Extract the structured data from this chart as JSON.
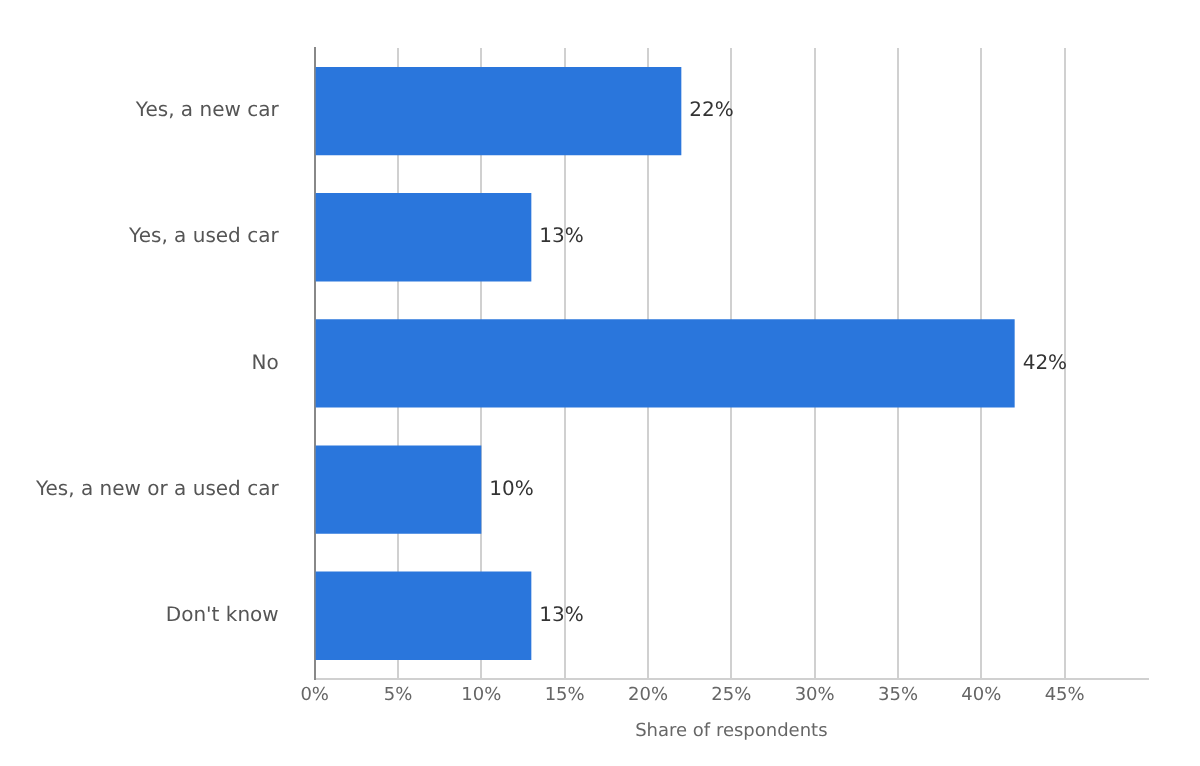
{
  "chart_data": {
    "type": "bar",
    "orientation": "horizontal",
    "categories": [
      "Yes, a new car",
      "Yes, a used car",
      "No",
      "Yes, a new or a used car",
      "Don't know"
    ],
    "values": [
      22,
      13,
      42,
      10,
      13
    ],
    "color": "#2a76dc",
    "value_labels": [
      "22%",
      "13%",
      "42%",
      "10%",
      "13%"
    ],
    "xlabel": "Share of respondents",
    "xlim": [
      0,
      50
    ],
    "xticks": [
      {
        "value": 0,
        "label": "0%"
      },
      {
        "value": 5,
        "label": "5%"
      },
      {
        "value": 10,
        "label": "10%"
      },
      {
        "value": 15,
        "label": "15%"
      },
      {
        "value": 20,
        "label": "20%"
      },
      {
        "value": 25,
        "label": "25%"
      },
      {
        "value": 30,
        "label": "30%"
      },
      {
        "value": 35,
        "label": "35%"
      },
      {
        "value": 40,
        "label": "40%"
      },
      {
        "value": 45,
        "label": "45%"
      }
    ],
    "grid": "x",
    "legend": false
  }
}
